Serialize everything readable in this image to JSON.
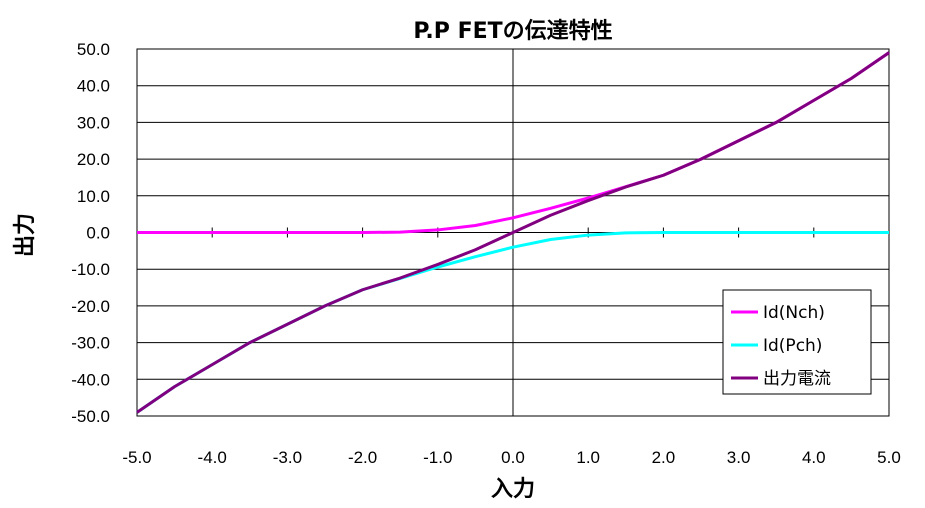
{
  "chart_data": {
    "type": "line",
    "title": "P.P FETの伝達特性",
    "xlabel": "入力",
    "ylabel": "出力",
    "xlim": [
      -5.0,
      5.0
    ],
    "ylim": [
      -50.0,
      50.0
    ],
    "x_ticks": [
      "-5.0",
      "-4.0",
      "-3.0",
      "-2.0",
      "-1.0",
      "0.0",
      "1.0",
      "2.0",
      "3.0",
      "4.0",
      "5.0"
    ],
    "y_ticks": [
      "50.0",
      "40.0",
      "30.0",
      "20.0",
      "10.0",
      "0.0",
      "-10.0",
      "-20.0",
      "-30.0",
      "-40.0",
      "-50.0"
    ],
    "grid": true,
    "legend_position": "right",
    "x": [
      -5.0,
      -4.5,
      -4.0,
      -3.5,
      -3.0,
      -2.5,
      -2.0,
      -1.5,
      -1.0,
      -0.5,
      0.0,
      0.5,
      1.0,
      1.5,
      2.0,
      2.5,
      3.0,
      3.5,
      4.0,
      4.5,
      5.0
    ],
    "series": [
      {
        "name": "Id(Nch)",
        "color": "#ff00ff",
        "values": [
          0.0,
          0.0,
          0.0,
          0.0,
          0.0,
          0.0,
          0.0,
          0.1,
          0.7,
          1.9,
          4.0,
          6.6,
          9.4,
          12.5,
          15.6,
          20.0,
          25.0,
          30.0,
          36.0,
          42.0,
          49.0
        ]
      },
      {
        "name": "Id(Pch)",
        "color": "#00ffff",
        "values": [
          -49.0,
          -42.0,
          -36.0,
          -30.0,
          -25.0,
          -20.0,
          -15.6,
          -12.5,
          -9.4,
          -6.6,
          -4.0,
          -1.9,
          -0.7,
          -0.1,
          0.0,
          0.0,
          0.0,
          0.0,
          0.0,
          0.0,
          0.0
        ]
      },
      {
        "name": "出力電流",
        "color": "#800080",
        "values": [
          -49.0,
          -42.0,
          -36.0,
          -30.0,
          -25.0,
          -20.0,
          -15.6,
          -12.4,
          -8.7,
          -4.7,
          0.0,
          4.7,
          8.7,
          12.4,
          15.6,
          20.0,
          25.0,
          30.0,
          36.0,
          42.0,
          49.0
        ]
      }
    ]
  }
}
